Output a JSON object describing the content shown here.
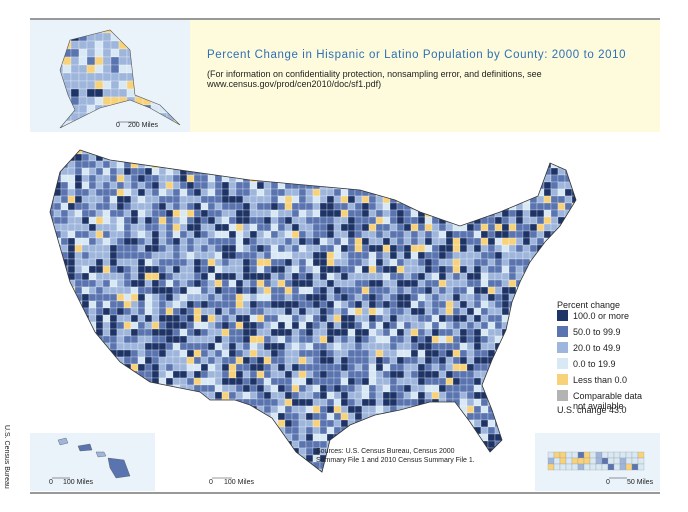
{
  "header": {
    "title": "Percent Change in Hispanic or Latino Population by County: 2000 to 2010",
    "note": [
      "(For information on confidentiality protection, nonsampling error, and definitions, see",
      "www.census.gov/prod/cen2010/doc/sf1.pdf)"
    ]
  },
  "legend": {
    "title": "Percent change",
    "items": [
      {
        "label": [
          "100.0 or more"
        ],
        "color": "#1f3466"
      },
      {
        "label": [
          "50.0 to 99.9"
        ],
        "color": "#5a74b0"
      },
      {
        "label": [
          "20.0 to 49.9"
        ],
        "color": "#9fb6dc"
      },
      {
        "label": [
          "0.0 to 19.9"
        ],
        "color": "#d8e8f4"
      },
      {
        "label": [
          "Less than 0.0"
        ],
        "color": "#f7d27a"
      },
      {
        "label": [
          "Comparable data",
          "not available"
        ],
        "color": "#b3b3b3"
      }
    ],
    "us_change": "U.S. change 43.0"
  },
  "source": [
    "Sources: U.S. Census Bureau, Census 2000",
    "Summary File 1 and 2010 Census Summary File 1."
  ],
  "scales": {
    "alaska": {
      "start": "0",
      "end": "200 Miles"
    },
    "hawaii": {
      "start": "0",
      "end": "100 Miles"
    },
    "mainland": {
      "start": "0",
      "end": "100 Miles"
    },
    "puerto_rico": {
      "start": "0",
      "end": "50 Miles"
    }
  },
  "agency": "U.S. Census Bureau"
}
